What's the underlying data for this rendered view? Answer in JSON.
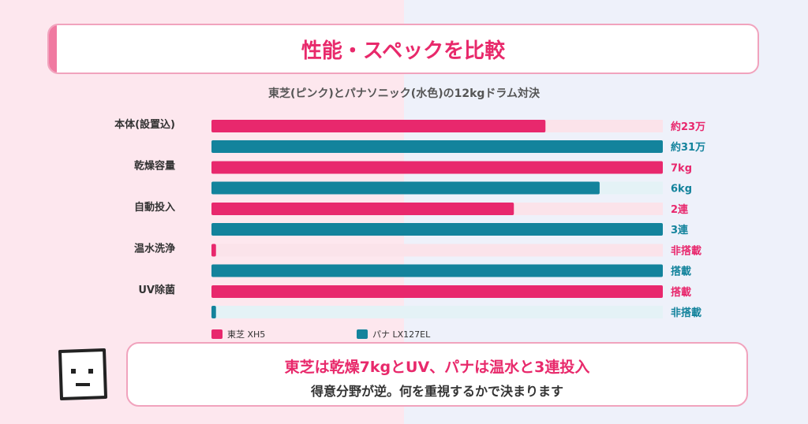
{
  "header": {
    "title": "性能・スペックを比較"
  },
  "chart_data": {
    "type": "bar",
    "orientation": "horizontal",
    "title": "",
    "subtitle": "東芝(ピンク)とパナソニック(水色)の12kgドラム対決",
    "categories": [
      "本体(設置込)",
      "乾燥容量",
      "自動投入",
      "温水洗浄",
      "UV除菌"
    ],
    "xlim": [
      0,
      1
    ],
    "series": [
      {
        "name": "東芝 XH5",
        "color": "#e8286d",
        "track": "#fbe3ea",
        "values": [
          0.74,
          1.0,
          0.67,
          0.01,
          1.0
        ],
        "labels": [
          "約23万",
          "7kg",
          "2連",
          "非搭載",
          "搭載"
        ]
      },
      {
        "name": "パナ LX127EL",
        "color": "#13839c",
        "track": "#e4f2f6",
        "values": [
          1.0,
          0.86,
          1.0,
          1.0,
          0.01
        ],
        "labels": [
          "約31万",
          "6kg",
          "3連",
          "搭載",
          "非搭載"
        ]
      }
    ],
    "legend": "bottom-left",
    "grid": false
  },
  "callout": {
    "line1": "東芝は乾燥7kgとUV、パナは温水と3連投入",
    "line2": "得意分野が逆。何を重視するかで決まります"
  },
  "mascot": {
    "icon": "square-face-icon"
  }
}
